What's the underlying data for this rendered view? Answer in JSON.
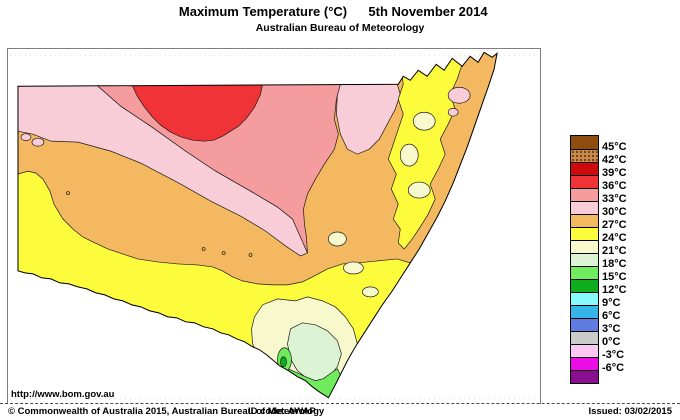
{
  "header": {
    "title": "Maximum Temperature (°C)",
    "date": "5th November 2014",
    "subtitle": "Australian Bureau of Meteorology"
  },
  "map": {
    "region_name": "New South Wales maximum temperature analysis",
    "url_label": "http://www.bom.gov.au"
  },
  "footer": {
    "copyright": "© Commonwealth of Australia 2015, Australian Bureau of Meteorology",
    "id_code": "ID code: AWAP",
    "issued": "Issued: 03/02/2015"
  },
  "colors": {
    "above_45": "#8F4D0F",
    "c42_45": "#C98B4D",
    "c39_42": "#CE0A0D",
    "c36_39": "#F03336",
    "c33_36": "#F59C9F",
    "c30_33": "#F9CDD7",
    "c27_30": "#F4B860",
    "c24_27": "#FCFC3D",
    "c21_24": "#F8F8CD",
    "c18_21": "#DCF4D3",
    "c15_18": "#70EB5E",
    "c12_15": "#0FAC1F",
    "c9_12": "#88FAFC",
    "c6_9": "#35B5E8",
    "c3_6": "#5E7CE2",
    "c0_3": "#C9CBCB",
    "cm3_0": "#FCC7F2",
    "cm6_m3": "#EC0CE4",
    "below_m6": "#8C0E90"
  },
  "legend": {
    "rows": [
      {
        "color_key": "above_45",
        "label": "45°C",
        "speckled": false
      },
      {
        "color_key": "c42_45",
        "label": "42°C",
        "speckled": true
      },
      {
        "color_key": "c39_42",
        "label": "39°C",
        "speckled": false
      },
      {
        "color_key": "c36_39",
        "label": "36°C",
        "speckled": false
      },
      {
        "color_key": "c33_36",
        "label": "33°C",
        "speckled": false
      },
      {
        "color_key": "c30_33",
        "label": "30°C",
        "speckled": false
      },
      {
        "color_key": "c27_30",
        "label": "27°C",
        "speckled": false
      },
      {
        "color_key": "c24_27",
        "label": "24°C",
        "speckled": false
      },
      {
        "color_key": "c21_24",
        "label": "21°C",
        "speckled": false
      },
      {
        "color_key": "c18_21",
        "label": "18°C",
        "speckled": false
      },
      {
        "color_key": "c15_18",
        "label": "15°C",
        "speckled": false
      },
      {
        "color_key": "c12_15",
        "label": "12°C",
        "speckled": false
      },
      {
        "color_key": "c9_12",
        "label": "9°C",
        "speckled": false
      },
      {
        "color_key": "c6_9",
        "label": "6°C",
        "speckled": false
      },
      {
        "color_key": "c3_6",
        "label": "3°C",
        "speckled": false
      },
      {
        "color_key": "c0_3",
        "label": "0°C",
        "speckled": false
      },
      {
        "color_key": "cm3_0",
        "label": "-3°C",
        "speckled": false
      },
      {
        "color_key": "cm6_m3",
        "label": "-6°C",
        "speckled": false
      },
      {
        "color_key": "below_m6",
        "label": null,
        "speckled": false
      }
    ]
  }
}
